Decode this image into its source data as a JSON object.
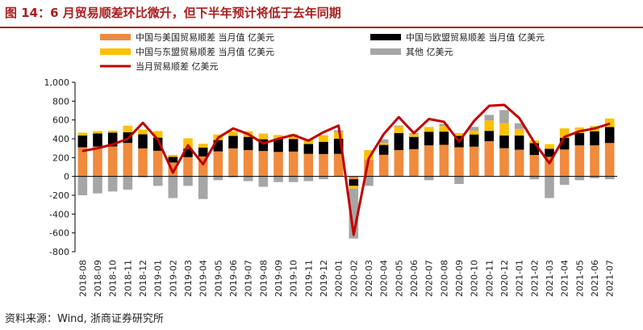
{
  "title": "图 14：6 月贸易顺差环比微升，但下半年预计将低于去年同期",
  "source": "资料来源：Wind, 浙商证券研究所",
  "chart_data": {
    "type": "bar",
    "stacked": true,
    "categories": [
      "2018-08",
      "2018-09",
      "2018-10",
      "2018-11",
      "2018-12",
      "2019-01",
      "2019-02",
      "2019-03",
      "2019-04",
      "2019-05",
      "2019-06",
      "2019-07",
      "2019-08",
      "2019-09",
      "2019-10",
      "2019-11",
      "2019-12",
      "2020-01",
      "2020-02",
      "2020-03",
      "2020-04",
      "2020-05",
      "2020-06",
      "2020-07",
      "2020-08",
      "2020-09",
      "2020-10",
      "2020-11",
      "2020-12",
      "2021-01",
      "2021-02",
      "2021-03",
      "2021-04",
      "2021-05",
      "2021-06",
      "2021-07"
    ],
    "ylim": [
      -800,
      1000
    ],
    "yticks": [
      "1,000",
      "800",
      "600",
      "400",
      "200",
      "0",
      "-200",
      "-400",
      "-600",
      "-800"
    ],
    "ytick_values": [
      1000,
      800,
      600,
      400,
      200,
      0,
      -200,
      -400,
      -600,
      -800
    ],
    "legend_position": "top",
    "grid": false,
    "series": [
      {
        "name": "中国与美国贸易顺差 当月值 亿美元",
        "kind": "bar",
        "color": "#f08a3c",
        "values": [
          310,
          317,
          318,
          356,
          298,
          272,
          148,
          205,
          212,
          266,
          298,
          280,
          270,
          260,
          264,
          240,
          238,
          240,
          -30,
          180,
          230,
          280,
          290,
          330,
          336,
          310,
          316,
          374,
          300,
          284,
          228,
          208,
          286,
          330,
          330,
          355
        ]
      },
      {
        "name": "中国与欧盟贸易顺差 当月值 亿美元",
        "kind": "bar",
        "color": "#000000",
        "values": [
          125,
          140,
          148,
          113,
          150,
          140,
          60,
          90,
          95,
          120,
          132,
          140,
          125,
          140,
          134,
          105,
          130,
          160,
          -70,
          0,
          105,
          180,
          130,
          145,
          140,
          120,
          130,
          110,
          135,
          150,
          125,
          85,
          125,
          130,
          150,
          170
        ]
      },
      {
        "name": "中国与东盟贸易顺差 当月值 亿美元",
        "kind": "bar",
        "color": "#ffc000",
        "values": [
          30,
          25,
          20,
          70,
          50,
          70,
          20,
          110,
          40,
          60,
          50,
          60,
          60,
          40,
          50,
          50,
          70,
          70,
          -30,
          100,
          20,
          70,
          30,
          50,
          60,
          30,
          40,
          110,
          130,
          70,
          30,
          50,
          100,
          60,
          55,
          90
        ]
      },
      {
        "name": "其他 亿美元",
        "kind": "bar",
        "color": "#a6a6a6",
        "values": [
          -200,
          -180,
          -160,
          -140,
          -10,
          -100,
          -230,
          -100,
          -240,
          -40,
          -10,
          -50,
          -110,
          -60,
          -60,
          -50,
          -30,
          20,
          -530,
          -100,
          40,
          10,
          10,
          -40,
          20,
          -80,
          40,
          60,
          140,
          60,
          -30,
          -230,
          -90,
          -40,
          -20,
          -30
        ]
      },
      {
        "name": "当月贸易顺差 亿美元",
        "kind": "line",
        "color": "#c00000",
        "values": [
          270,
          300,
          340,
          400,
          570,
          390,
          40,
          330,
          130,
          410,
          510,
          450,
          350,
          400,
          440,
          380,
          470,
          540,
          -620,
          190,
          450,
          630,
          460,
          610,
          580,
          370,
          590,
          750,
          760,
          620,
          360,
          140,
          420,
          480,
          510,
          560
        ]
      }
    ]
  }
}
